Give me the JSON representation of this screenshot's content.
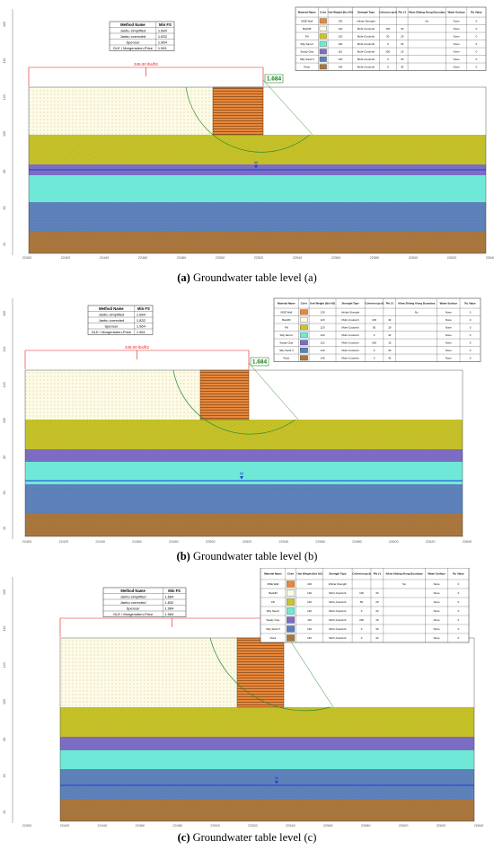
{
  "colors": {
    "mse_wall": "#e8873a",
    "backfill": "#fdfbe6",
    "fill": "#c9c52a",
    "silty_sand_i": "#6fe8d8",
    "sandy_clay": "#7c6cc4",
    "silty_sand_ii": "#5b7fb8",
    "rock": "#a9763e",
    "load": "#e21b1b",
    "slip": "#2e8b2e",
    "water": "#1a3fd8"
  },
  "methods": {
    "header": [
      "Method Name",
      "Min FS"
    ],
    "rows": [
      [
        "Janbu simplified",
        "1.684"
      ],
      [
        "Janbu corrected",
        "1.832"
      ],
      [
        "Spencer",
        "1.964"
      ],
      [
        "GLE / Morgenstern-Price",
        "1.961"
      ]
    ],
    "rows_c_last": "1.963"
  },
  "materials": {
    "header": [
      "Material Name",
      "Color",
      "Unit Weight (lbs/ ft3)",
      "Strength Type",
      "Cohesion (psf)",
      "Phi (°)",
      "Allow Sliding Along Boundary",
      "Water Surface",
      "Ru Value"
    ],
    "rows": [
      [
        "MSE Wall",
        "mse_wall",
        "130",
        "Infinite Strength",
        "",
        "",
        "No",
        "None",
        "0"
      ],
      [
        "Backfill",
        "backfill",
        "120",
        "Mohr-Coulomb",
        "100",
        "30",
        "",
        "None",
        "0"
      ],
      [
        "Fill",
        "fill",
        "120",
        "Mohr-Coulomb",
        "50",
        "29",
        "",
        "None",
        "0"
      ],
      [
        "Silty Sand I",
        "silty_sand_i",
        "120",
        "Mohr-Coulomb",
        "0",
        "32",
        "",
        "None",
        "0"
      ],
      [
        "Sandy Clay",
        "sandy_clay",
        "110",
        "Mohr-Coulomb",
        "200",
        "15",
        "",
        "None",
        "0"
      ],
      [
        "Silty Sand II",
        "silty_sand_ii",
        "120",
        "Mohr-Coulomb",
        "0",
        "30",
        "",
        "None",
        "0"
      ],
      [
        "Rock",
        "rock",
        "140",
        "Mohr-Coulomb",
        "0",
        "42",
        "",
        "None",
        "0"
      ]
    ]
  },
  "load_label": "345.00 lbs/ft2",
  "fs_label": "1.684",
  "water_symbol": "W",
  "x_ticks": [
    "22400",
    "22420",
    "22440",
    "22460",
    "22480",
    "22500",
    "22520",
    "22540",
    "22560",
    "22580",
    "22600",
    "22620",
    "22640"
  ],
  "y_ticks": [
    "160",
    "140",
    "120",
    "100",
    "80",
    "60",
    "40"
  ],
  "panels": [
    {
      "id": "a",
      "water_level": "a",
      "caption_label": "(a)",
      "caption_text": "Groundwater table level (a)"
    },
    {
      "id": "b",
      "water_level": "b",
      "caption_label": "(b)",
      "caption_text": "Groundwater table level (b)"
    },
    {
      "id": "c",
      "water_level": "c",
      "caption_label": "(c)",
      "caption_text": "Groundwater table level (c)"
    }
  ]
}
